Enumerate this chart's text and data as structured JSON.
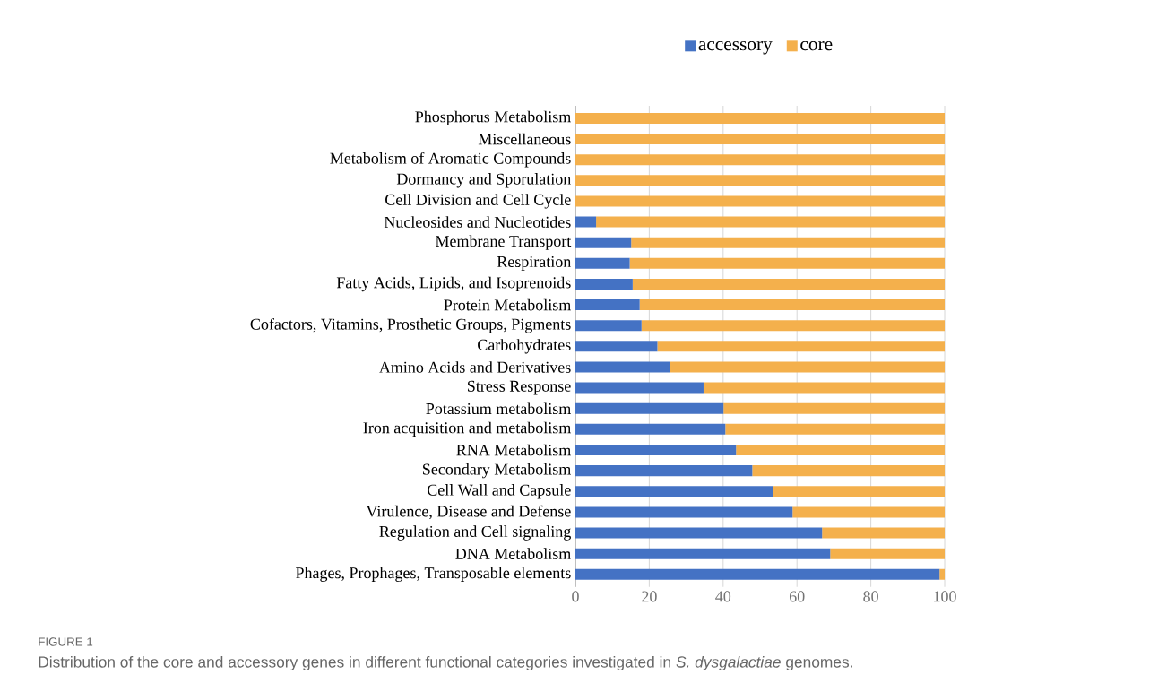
{
  "chart_data": {
    "type": "bar",
    "orientation": "horizontal",
    "stacked": true,
    "categories": [
      "Phosphorus Metabolism",
      "Miscellaneous",
      "Metabolism of Aromatic Compounds",
      "Dormancy and Sporulation",
      "Cell Division and Cell Cycle",
      "Nucleosides and Nucleotides",
      "Membrane Transport",
      "Respiration",
      "Fatty Acids, Lipids, and Isoprenoids",
      "Protein Metabolism",
      "Cofactors, Vitamins, Prosthetic Groups, Pigments",
      "Carbohydrates",
      "Amino Acids and Derivatives",
      "Stress Response",
      "Potassium metabolism",
      "Iron acquisition and metabolism",
      "RNA Metabolism",
      "Secondary Metabolism",
      "Cell Wall and Capsule",
      "Virulence, Disease and Defense",
      "Regulation and Cell signaling",
      "DNA Metabolism",
      "Phages, Prophages, Transposable elements"
    ],
    "series": [
      {
        "name": "accessory",
        "color": "#4472c4",
        "values": [
          0,
          0,
          0,
          0,
          0,
          5.6,
          15.1,
          14.7,
          15.5,
          17.4,
          17.9,
          22.2,
          25.7,
          34.7,
          40.1,
          40.6,
          43.5,
          47.9,
          53.4,
          58.8,
          66.8,
          69.0,
          98.6
        ]
      },
      {
        "name": "core",
        "color": "#f4b04c",
        "values": [
          100,
          100,
          100,
          100,
          100,
          94.4,
          84.9,
          85.3,
          84.5,
          82.6,
          82.1,
          77.8,
          74.3,
          65.3,
          59.9,
          59.4,
          56.5,
          52.1,
          46.6,
          41.2,
          33.2,
          31.0,
          1.4
        ]
      }
    ],
    "xlim": [
      0,
      100
    ],
    "xticks": [
      0,
      20,
      40,
      60,
      80,
      100
    ],
    "grid": "x",
    "legend": "top",
    "annotations": [
      "FIGURE 1",
      "Distribution of the core and accessory genes in different functional categories investigated in *S. dysgalactiae* genomes."
    ]
  }
}
